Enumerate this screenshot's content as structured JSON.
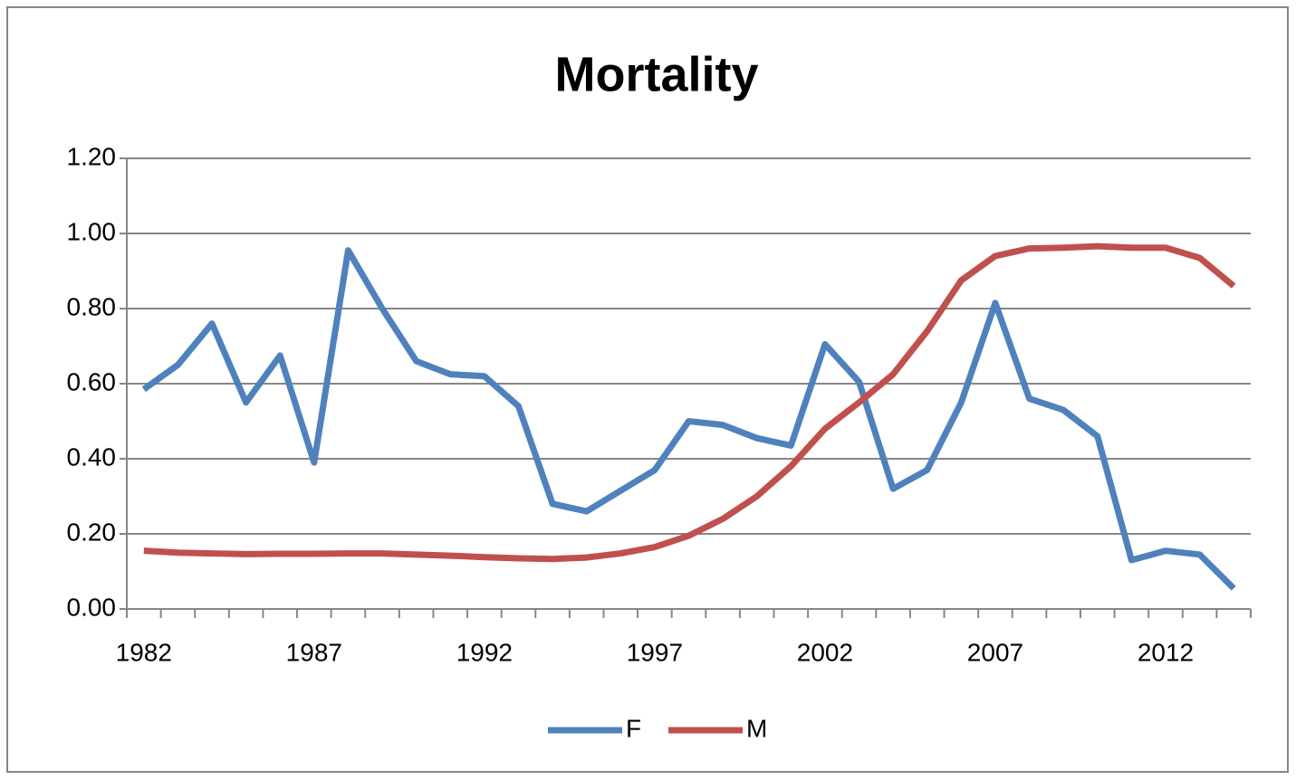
{
  "chart_data": {
    "type": "line",
    "title": "Mortality",
    "categories": [
      "1982",
      null,
      null,
      null,
      null,
      "1987",
      null,
      null,
      null,
      null,
      "1992",
      null,
      null,
      null,
      null,
      "1997",
      null,
      null,
      null,
      null,
      "2002",
      null,
      null,
      null,
      null,
      "2007",
      null,
      null,
      null,
      null,
      "2012",
      null,
      null
    ],
    "series": [
      {
        "name": "F",
        "color": "#4f81bd",
        "values": [
          0.585,
          0.65,
          0.76,
          0.55,
          0.675,
          0.39,
          0.955,
          0.8,
          0.66,
          0.625,
          0.62,
          0.54,
          0.28,
          0.26,
          0.315,
          0.37,
          0.5,
          0.49,
          0.455,
          0.435,
          0.705,
          0.605,
          0.32,
          0.37,
          0.55,
          0.815,
          0.56,
          0.53,
          0.46,
          0.13,
          0.155,
          0.145,
          0.055
        ]
      },
      {
        "name": "M",
        "color": "#c0504d",
        "values": [
          0.155,
          0.15,
          0.148,
          0.146,
          0.147,
          0.147,
          0.148,
          0.148,
          0.145,
          0.142,
          0.138,
          0.135,
          0.133,
          0.137,
          0.148,
          0.165,
          0.195,
          0.24,
          0.3,
          0.38,
          0.48,
          0.55,
          0.625,
          0.74,
          0.875,
          0.94,
          0.96,
          0.962,
          0.966,
          0.962,
          0.962,
          0.935,
          0.86
        ]
      }
    ],
    "ylim": [
      0,
      1.2
    ],
    "yticks": [
      {
        "value": 0,
        "label": "0.00"
      },
      {
        "value": 0.2,
        "label": "0.20"
      },
      {
        "value": 0.4,
        "label": "0.40"
      },
      {
        "value": 0.6,
        "label": "0.60"
      },
      {
        "value": 0.8,
        "label": "0.80"
      },
      {
        "value": 1.0,
        "label": "1.00"
      },
      {
        "value": 1.2,
        "label": "1.20"
      }
    ],
    "grid": true,
    "legend": "bottom"
  }
}
